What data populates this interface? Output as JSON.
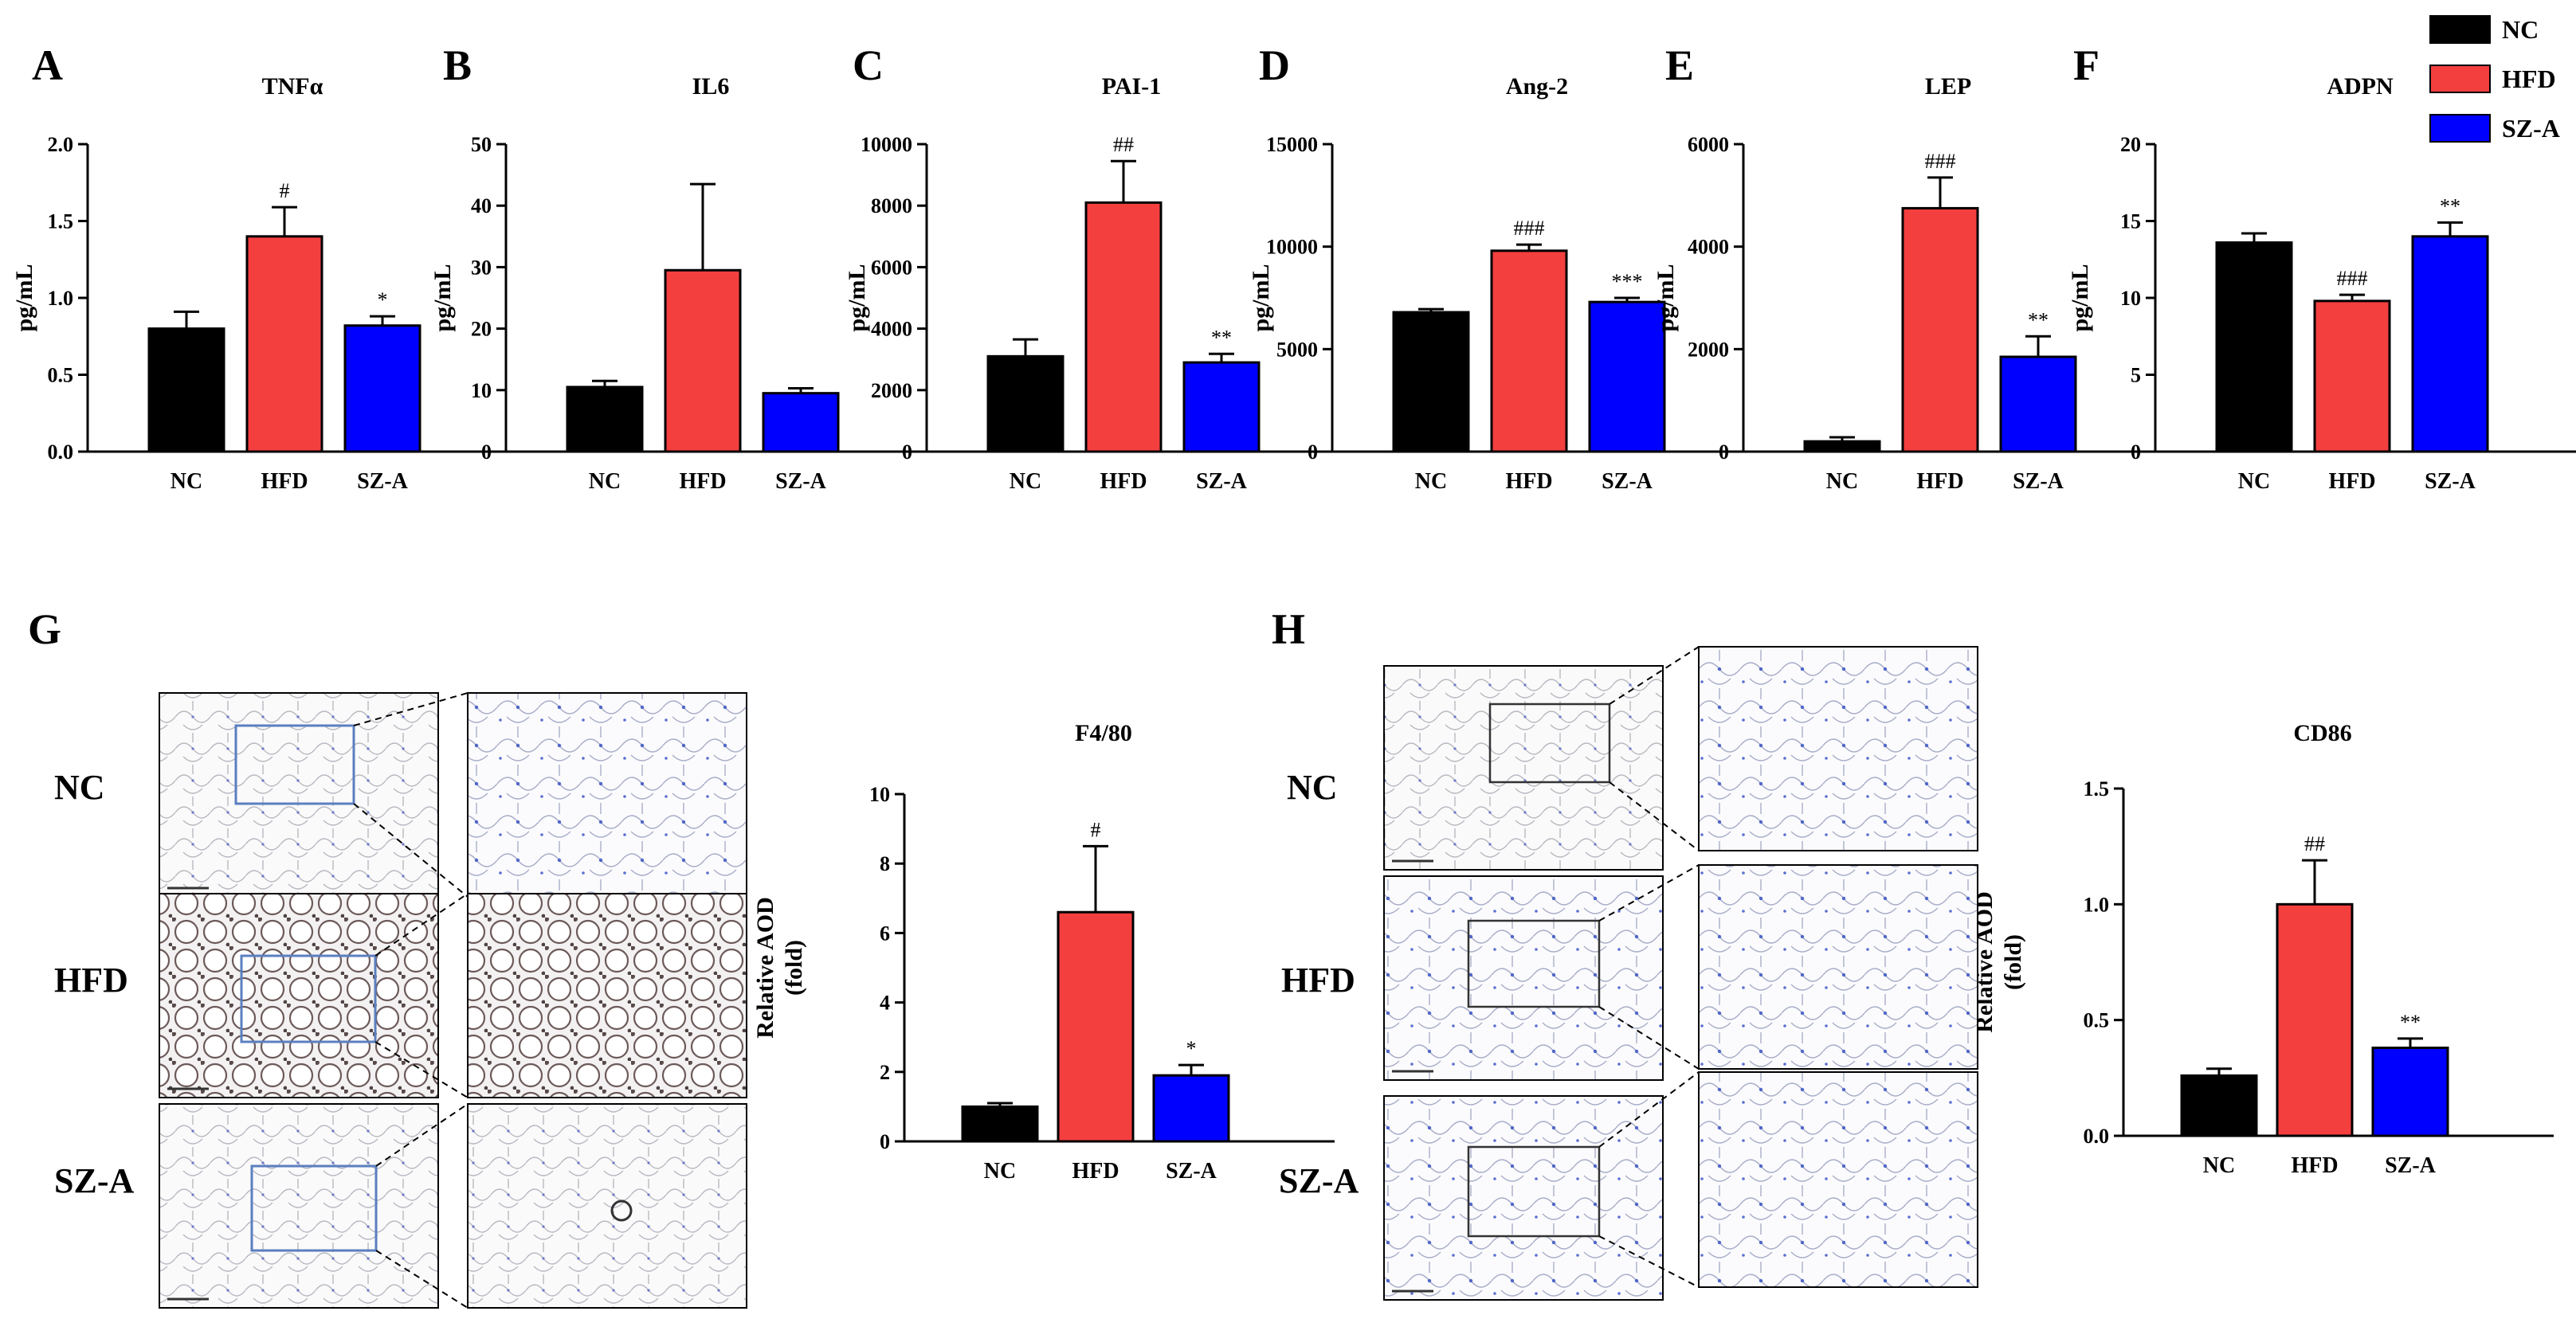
{
  "legend": [
    {
      "label": "NC",
      "color": "#000000"
    },
    {
      "label": "HFD",
      "color": "#f43f3f"
    },
    {
      "label": "SZ-A",
      "color": "#0000ff"
    }
  ],
  "chart_data": [
    {
      "id": "A",
      "panel": "A",
      "type": "bar",
      "title": "TNFα",
      "ylabel": "pg/mL",
      "categories": [
        "NC",
        "HFD",
        "SZ-A"
      ],
      "values": [
        0.8,
        1.4,
        0.82
      ],
      "errors": [
        0.11,
        0.19,
        0.06
      ],
      "significance": [
        "",
        "#",
        "*"
      ],
      "ylim": [
        0,
        2.0
      ],
      "yticks": [
        0,
        0.5,
        1.0,
        1.5,
        2.0
      ],
      "tick_labels": [
        "0.0",
        "0.5",
        "1.0",
        "1.5",
        "2.0"
      ]
    },
    {
      "id": "B",
      "panel": "B",
      "type": "bar",
      "title": "IL6",
      "ylabel": "pg/mL",
      "categories": [
        "NC",
        "HFD",
        "SZ-A"
      ],
      "values": [
        10.5,
        29.5,
        9.5
      ],
      "errors": [
        1.0,
        14,
        0.8
      ],
      "significance": [
        "",
        "",
        ""
      ],
      "ylim": [
        0,
        50
      ],
      "yticks": [
        0,
        10,
        20,
        30,
        40,
        50
      ],
      "tick_labels": [
        "0",
        "10",
        "20",
        "30",
        "40",
        "50"
      ]
    },
    {
      "id": "C",
      "panel": "C",
      "type": "bar",
      "title": "PAI-1",
      "ylabel": "pg/mL",
      "categories": [
        "NC",
        "HFD",
        "SZ-A"
      ],
      "values": [
        3100,
        8100,
        2900
      ],
      "errors": [
        550,
        1350,
        280
      ],
      "significance": [
        "",
        "##",
        "**"
      ],
      "ylim": [
        0,
        10000
      ],
      "yticks": [
        0,
        2000,
        4000,
        6000,
        8000,
        10000
      ],
      "tick_labels": [
        "0",
        "2000",
        "4000",
        "6000",
        "8000",
        "10000"
      ]
    },
    {
      "id": "D",
      "panel": "D",
      "type": "bar",
      "title": "Ang-2",
      "ylabel": "pg/mL",
      "categories": [
        "NC",
        "HFD",
        "SZ-A"
      ],
      "values": [
        6800,
        9800,
        7300
      ],
      "errors": [
        150,
        300,
        200
      ],
      "significance": [
        "",
        "###",
        "***"
      ],
      "ylim": [
        0,
        15000
      ],
      "yticks": [
        0,
        5000,
        10000,
        15000
      ],
      "tick_labels": [
        "0",
        "5000",
        "10000",
        "15000"
      ]
    },
    {
      "id": "E",
      "panel": "E",
      "type": "bar",
      "title": "LEP",
      "ylabel": "pg/mL",
      "categories": [
        "NC",
        "HFD",
        "SZ-A"
      ],
      "values": [
        200,
        4750,
        1850
      ],
      "errors": [
        80,
        600,
        400
      ],
      "significance": [
        "",
        "###",
        "**"
      ],
      "ylim": [
        0,
        6000
      ],
      "yticks": [
        0,
        2000,
        4000,
        6000
      ],
      "tick_labels": [
        "0",
        "2000",
        "4000",
        "6000"
      ]
    },
    {
      "id": "F",
      "panel": "F",
      "type": "bar",
      "title": "ADPN",
      "ylabel": "pg/mL",
      "categories": [
        "NC",
        "HFD",
        "SZ-A"
      ],
      "values": [
        13.6,
        9.8,
        14.0
      ],
      "errors": [
        0.6,
        0.4,
        0.9
      ],
      "significance": [
        "",
        "###",
        "**"
      ],
      "ylim": [
        0,
        20
      ],
      "yticks": [
        0,
        5,
        10,
        15,
        20
      ],
      "tick_labels": [
        "0",
        "5",
        "10",
        "15",
        "20"
      ]
    },
    {
      "id": "G",
      "panel": "G",
      "type": "bar",
      "title": "F4/80",
      "ylabel": [
        "Relative AOD",
        "(fold)"
      ],
      "categories": [
        "NC",
        "HFD",
        "SZ-A"
      ],
      "values": [
        1.0,
        6.6,
        1.9
      ],
      "errors": [
        0.1,
        1.9,
        0.3
      ],
      "significance": [
        "",
        "#",
        "*"
      ],
      "ylim": [
        0,
        10
      ],
      "yticks": [
        0,
        2,
        4,
        6,
        8,
        10
      ],
      "tick_labels": [
        "0",
        "2",
        "4",
        "6",
        "8",
        "10"
      ]
    },
    {
      "id": "H",
      "panel": "H",
      "type": "bar",
      "title": "CD86",
      "ylabel": [
        "Relative AOD",
        "(fold)"
      ],
      "categories": [
        "NC",
        "HFD",
        "SZ-A"
      ],
      "values": [
        0.26,
        1.0,
        0.38
      ],
      "errors": [
        0.03,
        0.19,
        0.04
      ],
      "significance": [
        "",
        "##",
        "**"
      ],
      "ylim": [
        0,
        1.5
      ],
      "yticks": [
        0,
        0.5,
        1.0,
        1.5
      ],
      "tick_labels": [
        "0.0",
        "0.5",
        "1.0",
        "1.5"
      ]
    }
  ],
  "histology": {
    "G": {
      "rows": [
        "NC",
        "HFD",
        "SZ-A"
      ]
    },
    "H": {
      "rows": [
        "NC",
        "HFD",
        "SZ-A"
      ]
    }
  }
}
